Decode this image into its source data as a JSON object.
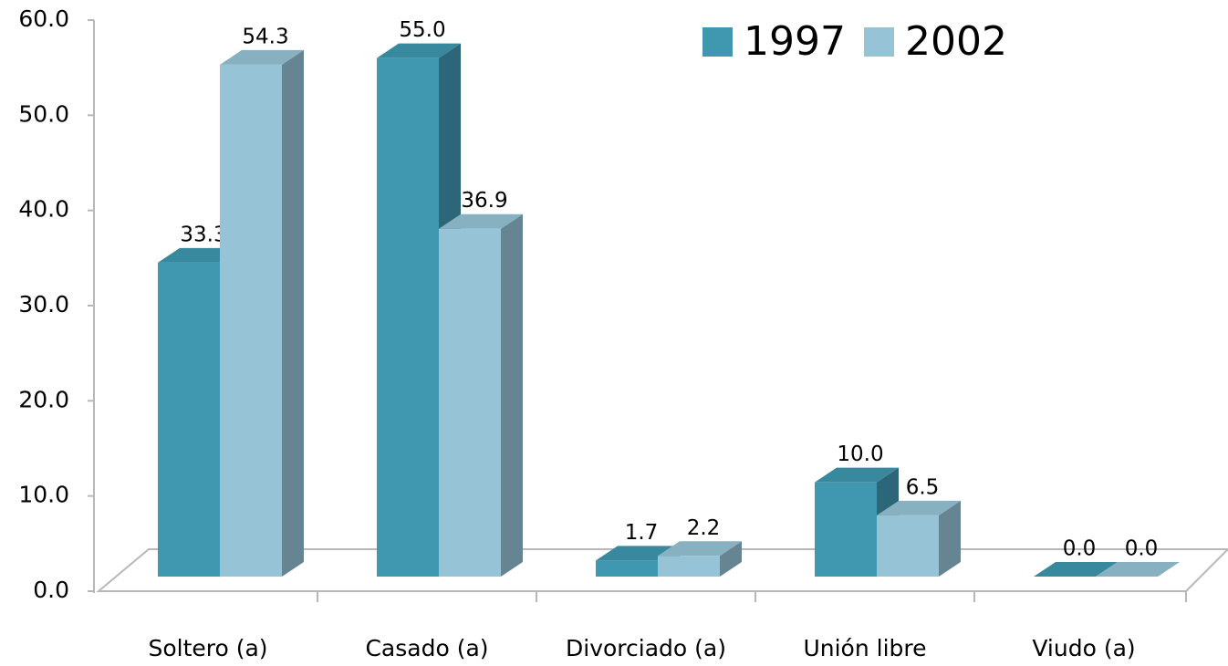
{
  "chart_data": {
    "type": "bar3d",
    "categories": [
      "Soltero (a)",
      "Casado (a)",
      "Divorciado (a)",
      "Unión libre",
      "Viudo  (a)"
    ],
    "series": [
      {
        "name": "1997",
        "color": "#3f98b0",
        "values": [
          33.3,
          55.0,
          1.7,
          10.0,
          0.0
        ],
        "value_labels": [
          "33.3",
          "55.0",
          "1.7",
          "10.0",
          "0.0"
        ]
      },
      {
        "name": "2002",
        "color": "#96c4d6",
        "values": [
          54.3,
          36.9,
          2.2,
          6.5,
          0.0
        ],
        "value_labels": [
          "54.3",
          "36.9",
          "2.2",
          "6.5",
          "0.0"
        ]
      }
    ],
    "ylim": [
      0,
      60
    ],
    "yticks": [
      {
        "value": 0,
        "label": "0.0"
      },
      {
        "value": 10,
        "label": "10.0"
      },
      {
        "value": 20,
        "label": "20.0"
      },
      {
        "value": 30,
        "label": "30.0"
      },
      {
        "value": 40,
        "label": "40.0"
      },
      {
        "value": 50,
        "label": "50.0"
      },
      {
        "value": 60,
        "label": "60.0"
      }
    ],
    "legend": "top-right"
  }
}
